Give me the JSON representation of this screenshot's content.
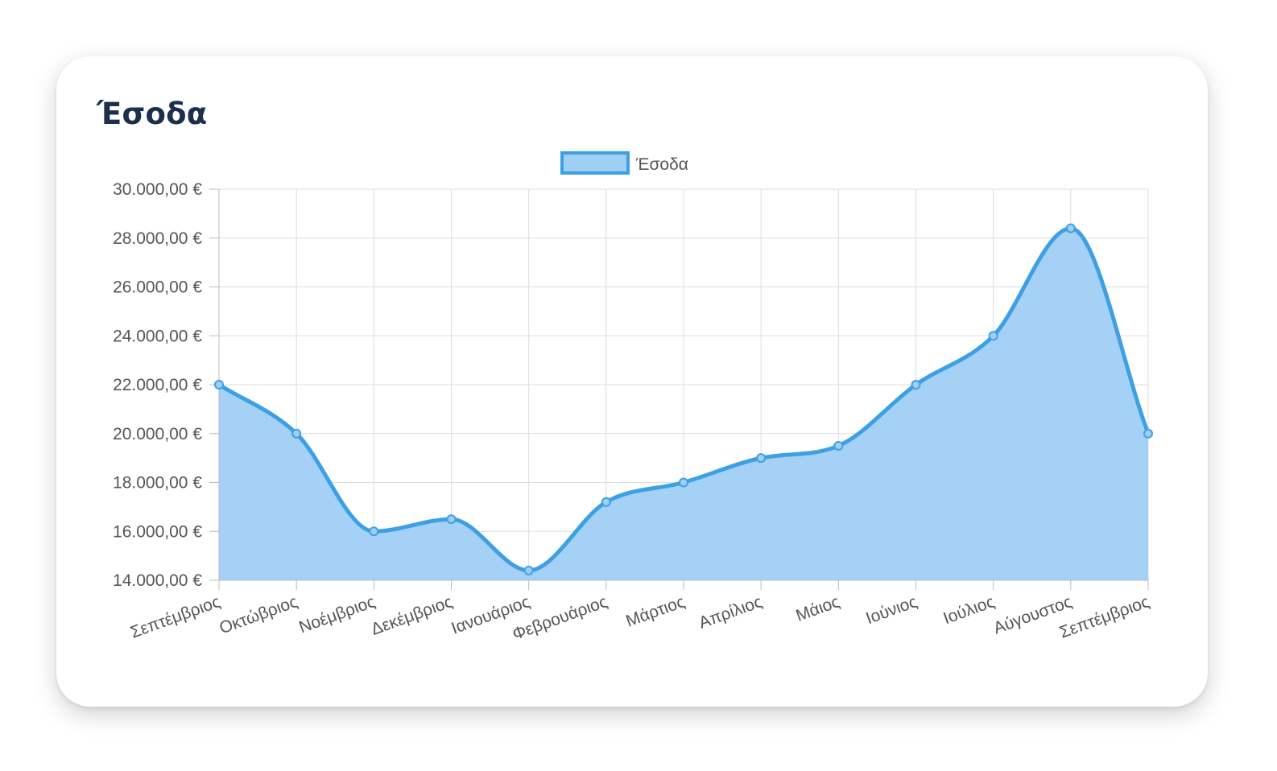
{
  "card": {
    "title": "Έσοδα"
  },
  "chart_data": {
    "type": "area",
    "legend": {
      "label": "Έσοδα",
      "position": "top-center"
    },
    "categories": [
      "Σεπτέμβριος",
      "Οκτώβριος",
      "Νοέμβριος",
      "Δεκέμβριος",
      "Ιανουάριος",
      "Φεβρουάριος",
      "Μάρτιος",
      "Απρίλιος",
      "Μάιος",
      "Ιούνιος",
      "Ιούλιος",
      "Αύγουστος",
      "Σεπτέμβριος"
    ],
    "series": [
      {
        "name": "Έσοδα",
        "values": [
          22000,
          20000,
          16000,
          16500,
          14400,
          17200,
          18000,
          19000,
          19500,
          22000,
          24000,
          28400,
          20000
        ]
      }
    ],
    "ylim": [
      14000,
      30000
    ],
    "yticks": [
      30000,
      28000,
      26000,
      24000,
      22000,
      20000,
      18000,
      16000,
      14000
    ],
    "ytick_labels": [
      "30.000,00 €",
      "28.000,00 €",
      "26.000,00 €",
      "24.000,00 €",
      "22.000,00 €",
      "20.000,00 €",
      "18.000,00 €",
      "16.000,00 €",
      "14.000,00 €"
    ],
    "grid": true,
    "colors": {
      "line": "#3ea0e4",
      "fill": "#9fcff4",
      "grid": "#dddddd",
      "axis": "#bbbbbb"
    }
  }
}
